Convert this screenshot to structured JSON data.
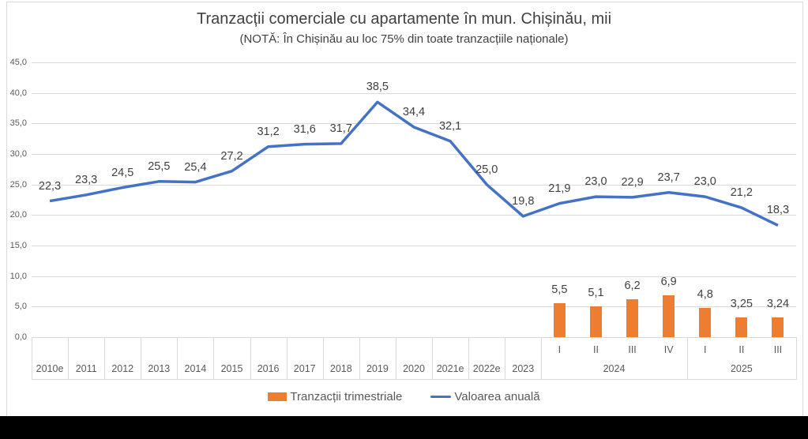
{
  "chart_data": {
    "type": "line+bar",
    "title": "Tranzacții comerciale cu apartamente în mun. Chișinău, mii",
    "subtitle": "(NOTĂ: În Chișinău au loc 75% din toate tranzacțiile naționale)",
    "categories": [
      "2010e",
      "2011",
      "2012",
      "2013",
      "2014",
      "2015",
      "2016",
      "2017",
      "2018",
      "2019",
      "2020",
      "2021e",
      "2022e",
      "2023",
      "I",
      "II",
      "III",
      "IV",
      "I",
      "II",
      "III"
    ],
    "category_groups": [
      {
        "label": "2024",
        "start": 14,
        "end": 17
      },
      {
        "label": "2025",
        "start": 18,
        "end": 20
      }
    ],
    "series": [
      {
        "name": "Valoarea anuală",
        "type": "line",
        "color": "#4472C4",
        "values": [
          22.3,
          23.3,
          24.5,
          25.5,
          25.4,
          27.2,
          31.2,
          31.6,
          31.7,
          38.5,
          34.4,
          32.1,
          25.0,
          19.8,
          21.9,
          23.0,
          22.9,
          23.7,
          23.0,
          21.2,
          18.3
        ],
        "labels": [
          "22,3",
          "23,3",
          "24,5",
          "25,5",
          "25,4",
          "27,2",
          "31,2",
          "31,6",
          "31,7",
          "38,5",
          "34,4",
          "32,1",
          "25,0",
          "19,8",
          "21,9",
          "23,0",
          "22,9",
          "23,7",
          "23,0",
          "21,2",
          "18,3"
        ]
      },
      {
        "name": "Tranzacții trimestriale",
        "type": "bar",
        "color": "#ED7D31",
        "start_index": 14,
        "values": [
          5.5,
          5.1,
          6.2,
          6.9,
          4.8,
          3.25,
          3.24
        ],
        "labels": [
          "5,5",
          "5,1",
          "6,2",
          "6,9",
          "4,8",
          "3,25",
          "3,24"
        ]
      }
    ],
    "y_axis": {
      "min": 0,
      "max": 45,
      "step": 5,
      "tick_labels": [
        "0,0",
        "5,0",
        "10,0",
        "15,0",
        "20,0",
        "25,0",
        "30,0",
        "35,0",
        "40,0",
        "45,0"
      ]
    },
    "grid": "horizontal",
    "legend_position": "bottom",
    "legend": [
      {
        "label": "Tranzacții trimestriale",
        "color": "#ED7D31",
        "marker": "bar"
      },
      {
        "label": "Valoarea anuală",
        "color": "#4472C4",
        "marker": "line"
      }
    ],
    "colors": {
      "line": "#4472C4",
      "bar": "#ED7D31",
      "gridline": "#D9D9D9",
      "axis_border": "#D9D9D9",
      "tick_text": "#595959",
      "data_label": "#404040",
      "title_text": "#404040",
      "background": "#FFFFFF",
      "bottom_bar": "#000000"
    }
  }
}
